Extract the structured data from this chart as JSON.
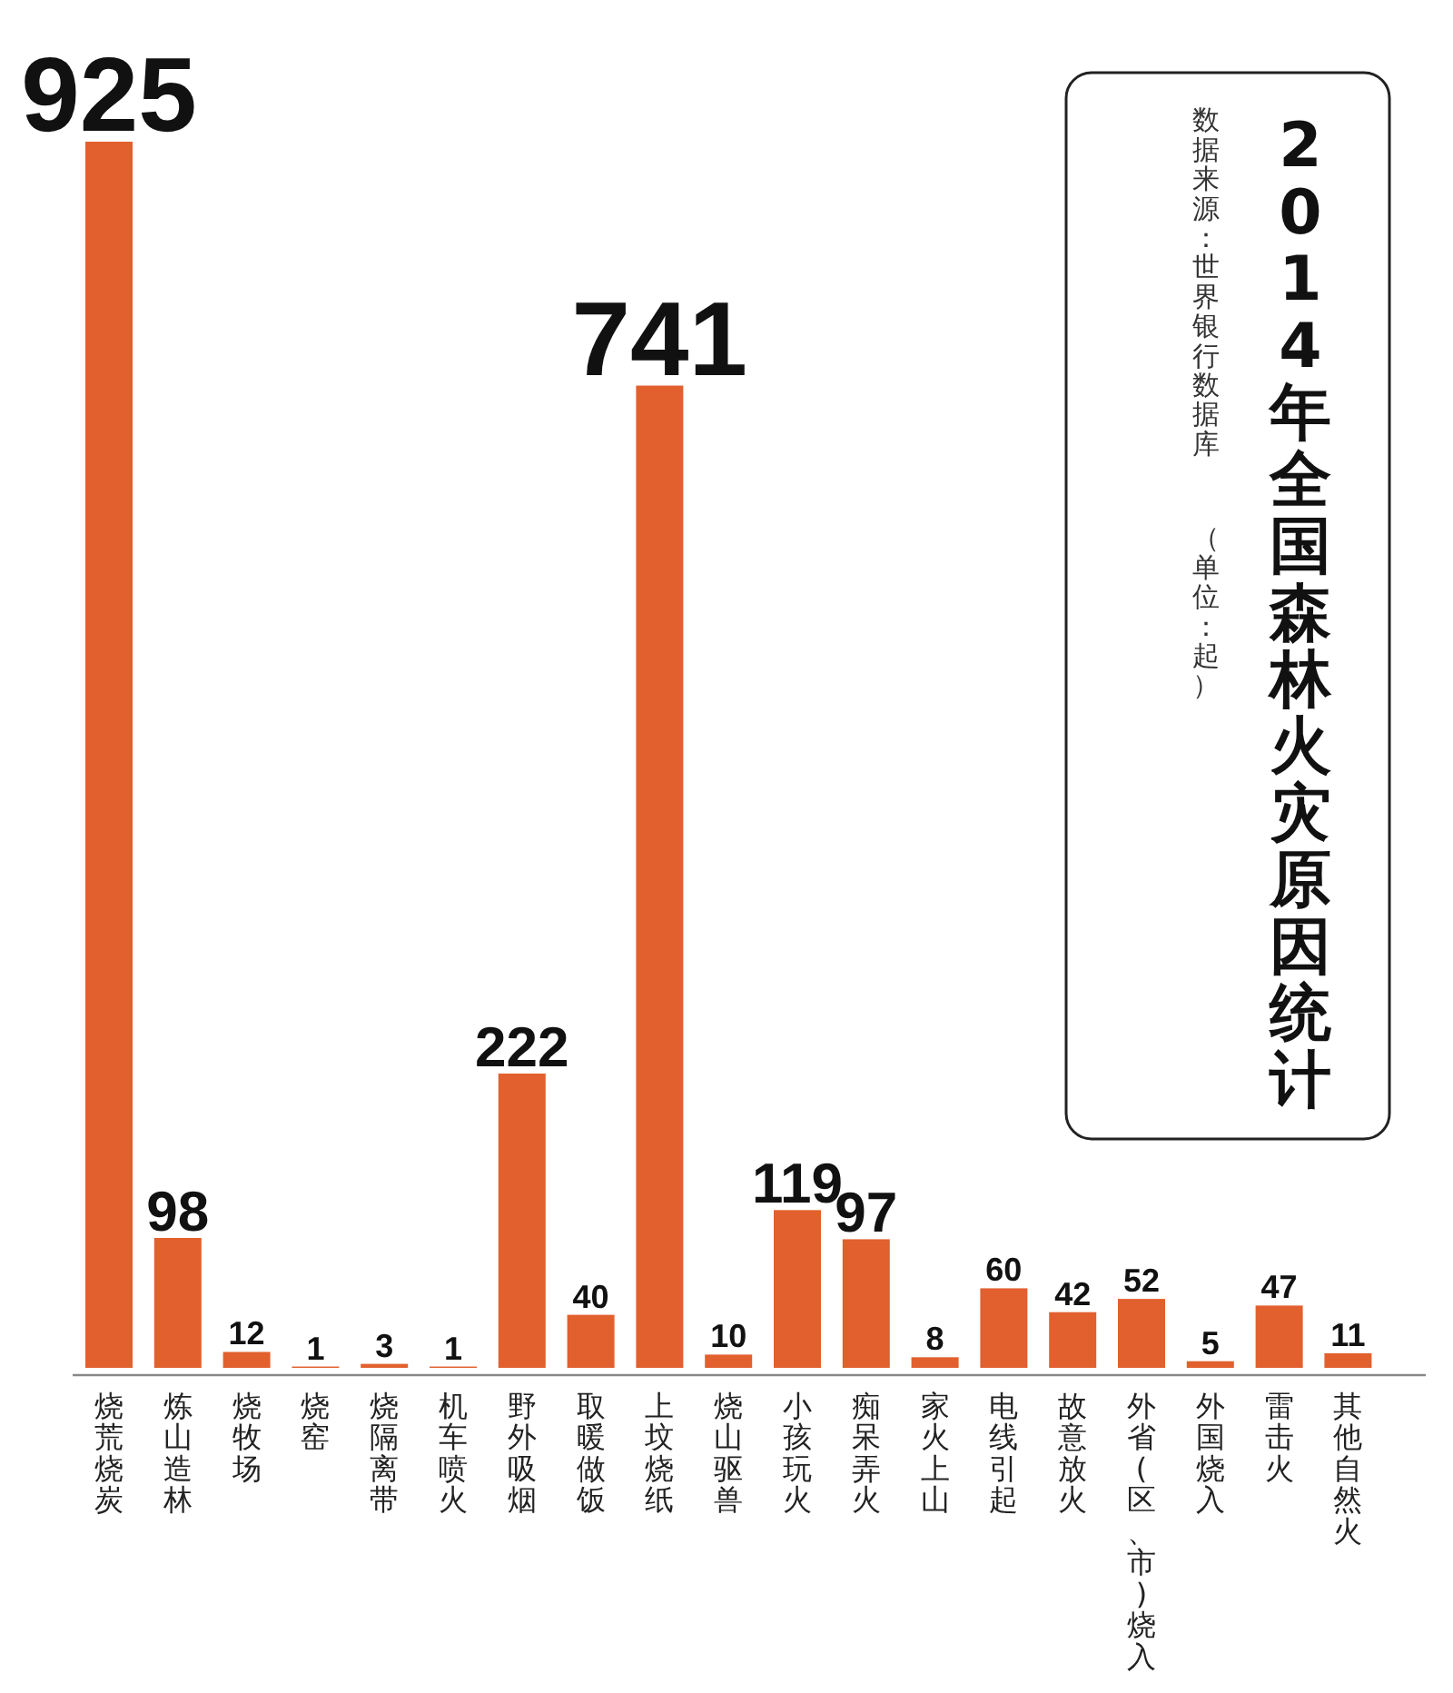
{
  "chart_data": {
    "type": "bar",
    "title": "2014年全国森林火灾原因统计",
    "annotations": [
      "数据来源：世界银行数据库",
      "（单位：起）"
    ],
    "categories": [
      "烧荒烧炭",
      "炼山造林",
      "烧牧场",
      "烧窑",
      "烧隔离带",
      "机车喷火",
      "野外吸烟",
      "取暖做饭",
      "上坟烧纸",
      "烧山驱兽",
      "小孩玩火",
      "痴呆弄火",
      "家火上山",
      "电线引起",
      "故意放火",
      "外省(区、市)烧入",
      "外国烧入",
      "雷击火",
      "其他自然火"
    ],
    "values": [
      925,
      98,
      12,
      1,
      3,
      1,
      222,
      40,
      741,
      10,
      119,
      97,
      8,
      60,
      42,
      52,
      5,
      47,
      11
    ],
    "color": "#e2602e",
    "data_labels": true
  }
}
